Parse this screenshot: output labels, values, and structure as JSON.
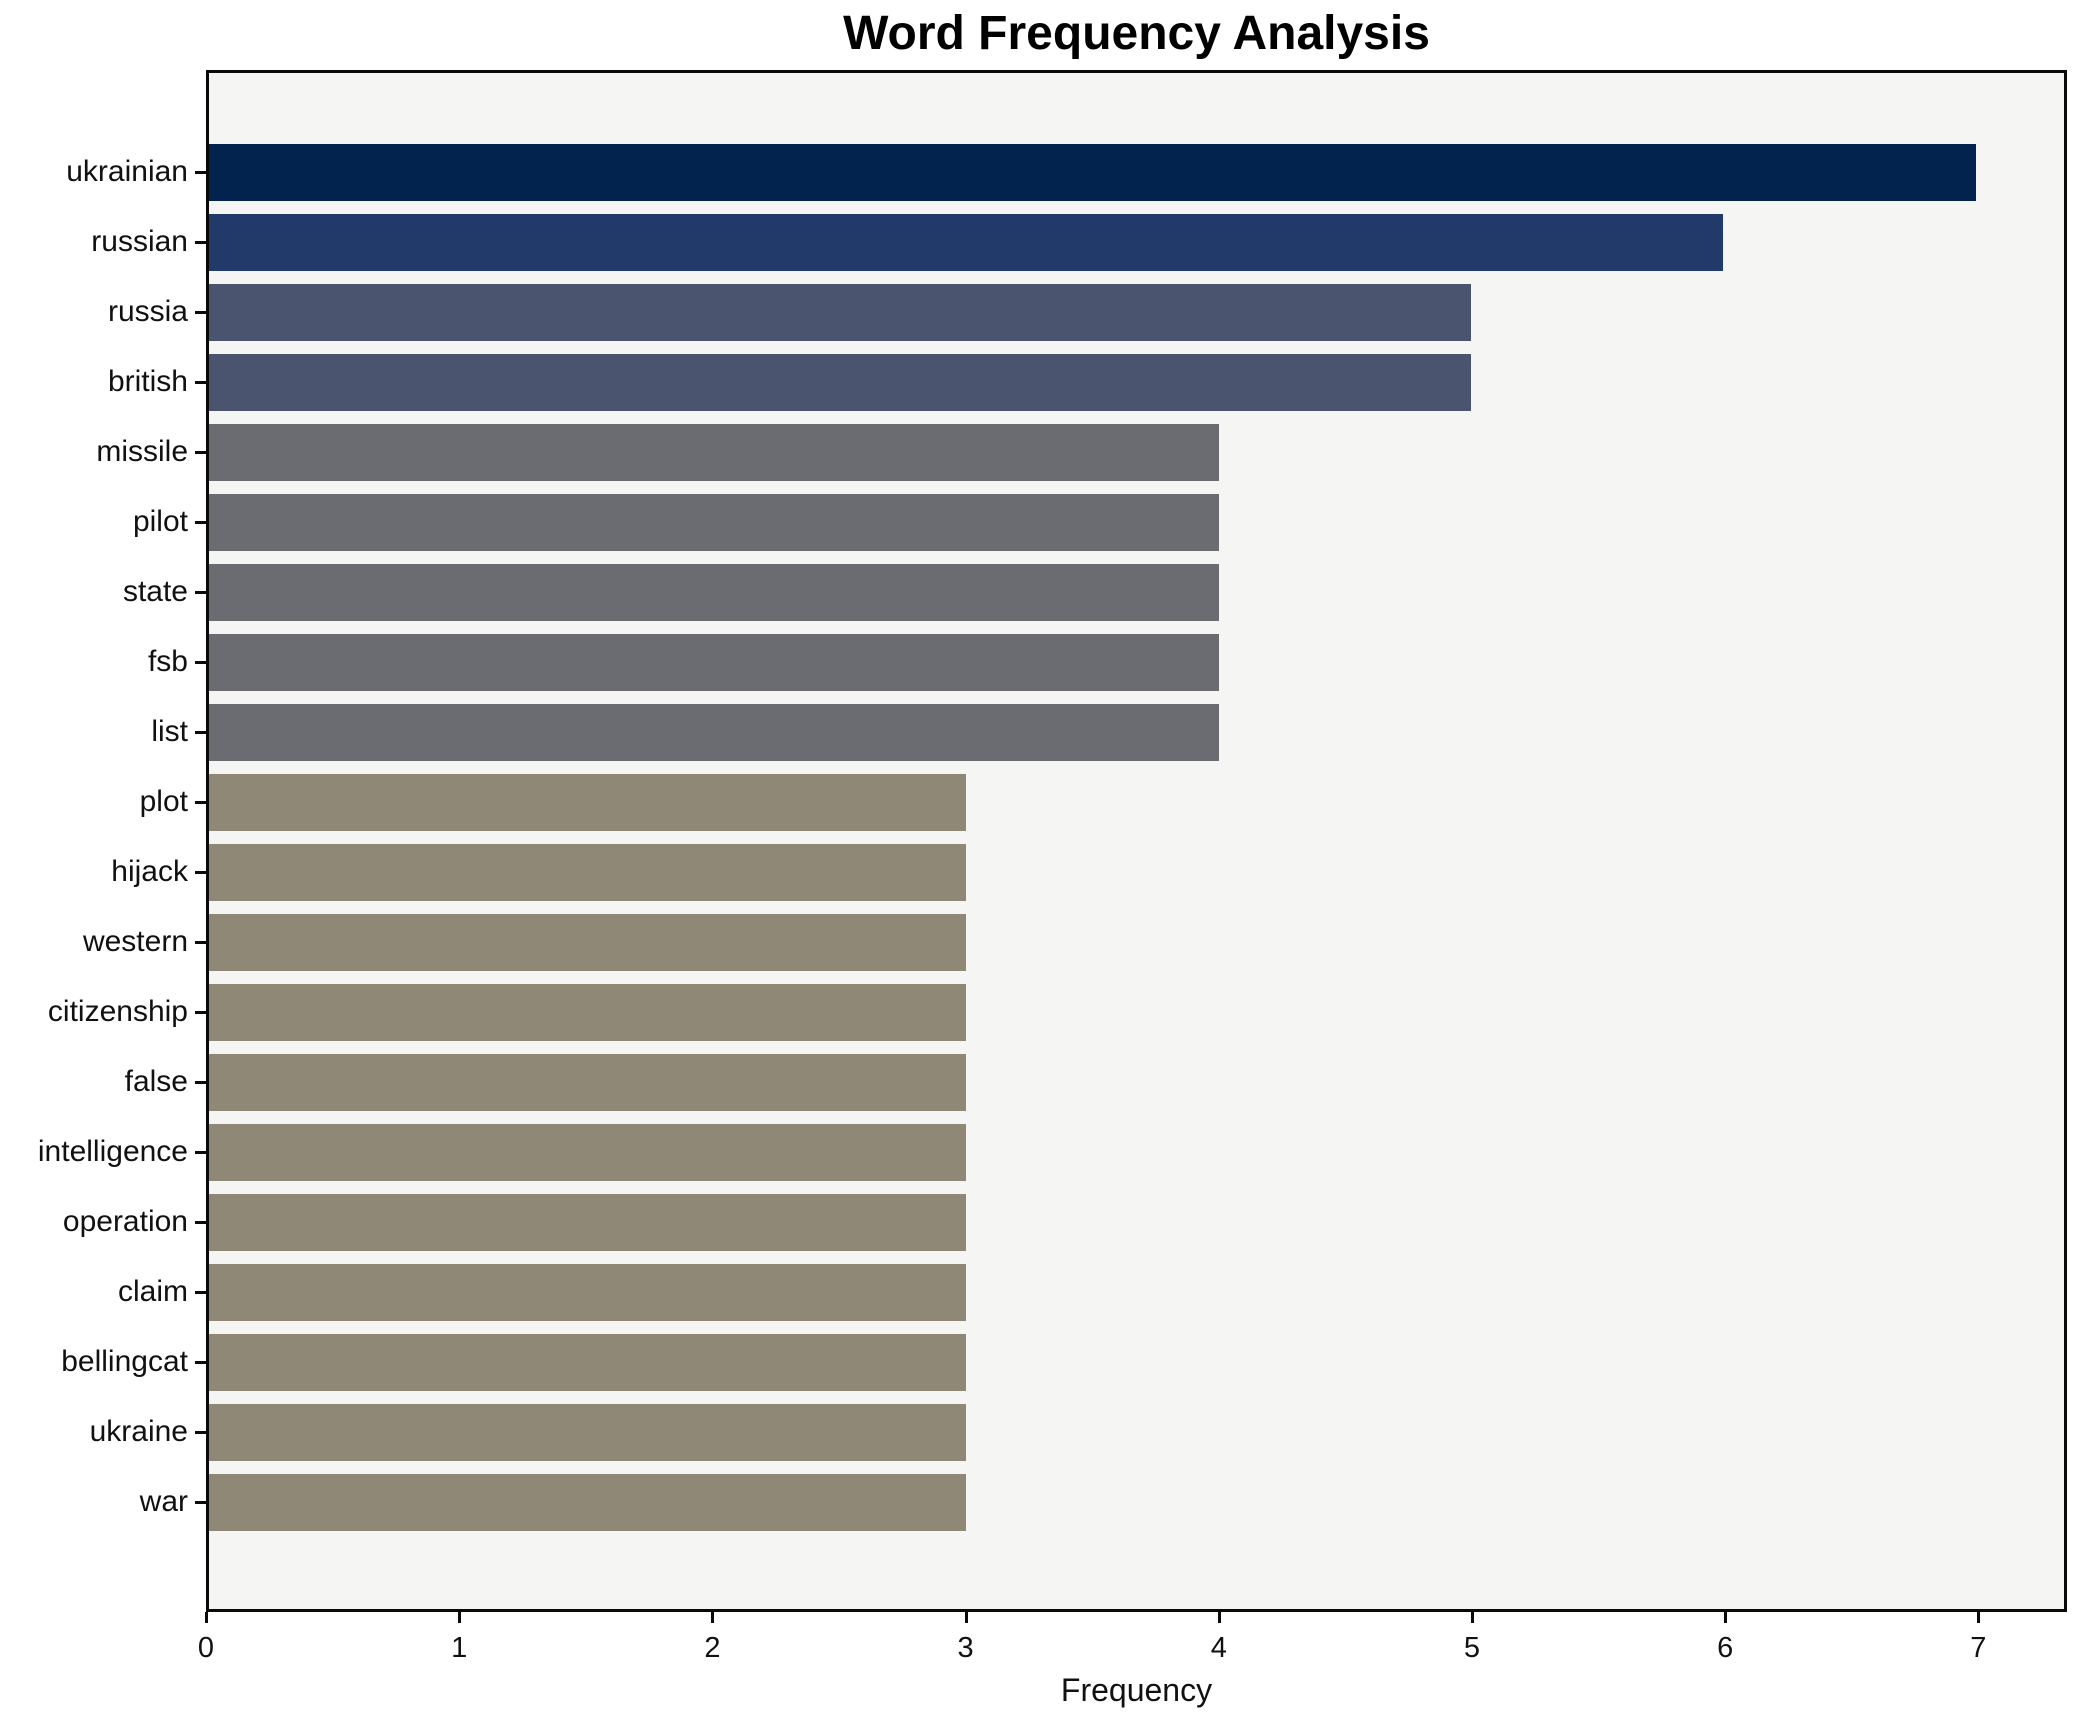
{
  "chart_data": {
    "type": "bar",
    "orientation": "horizontal",
    "title": "Word Frequency Analysis",
    "xlabel": "Frequency",
    "ylabel": "",
    "categories": [
      "ukrainian",
      "russian",
      "russia",
      "british",
      "missile",
      "pilot",
      "state",
      "fsb",
      "list",
      "plot",
      "hijack",
      "western",
      "citizenship",
      "false",
      "intelligence",
      "operation",
      "claim",
      "bellingcat",
      "ukraine",
      "war"
    ],
    "values": [
      7,
      6,
      5,
      5,
      4,
      4,
      4,
      4,
      4,
      3,
      3,
      3,
      3,
      3,
      3,
      3,
      3,
      3,
      3,
      3
    ],
    "bar_colors": [
      "#01234e",
      "#223a69",
      "#4b546f",
      "#4b546f",
      "#6a6c71",
      "#6a6c71",
      "#6a6c71",
      "#6a6c71",
      "#6a6c71",
      "#8f8877",
      "#8f8877",
      "#8f8877",
      "#8f8877",
      "#8f8877",
      "#8f8877",
      "#8f8877",
      "#8f8877",
      "#8f8877",
      "#8f8877",
      "#8f8877"
    ],
    "xlim": [
      0,
      7.35
    ],
    "x_ticks": [
      0,
      1,
      2,
      3,
      4,
      5,
      6,
      7
    ],
    "grid": false,
    "legend": "none",
    "plot_background": "#f5f5f4",
    "figure_background": "#ffffff",
    "spine_color": "#0a0a0a"
  }
}
